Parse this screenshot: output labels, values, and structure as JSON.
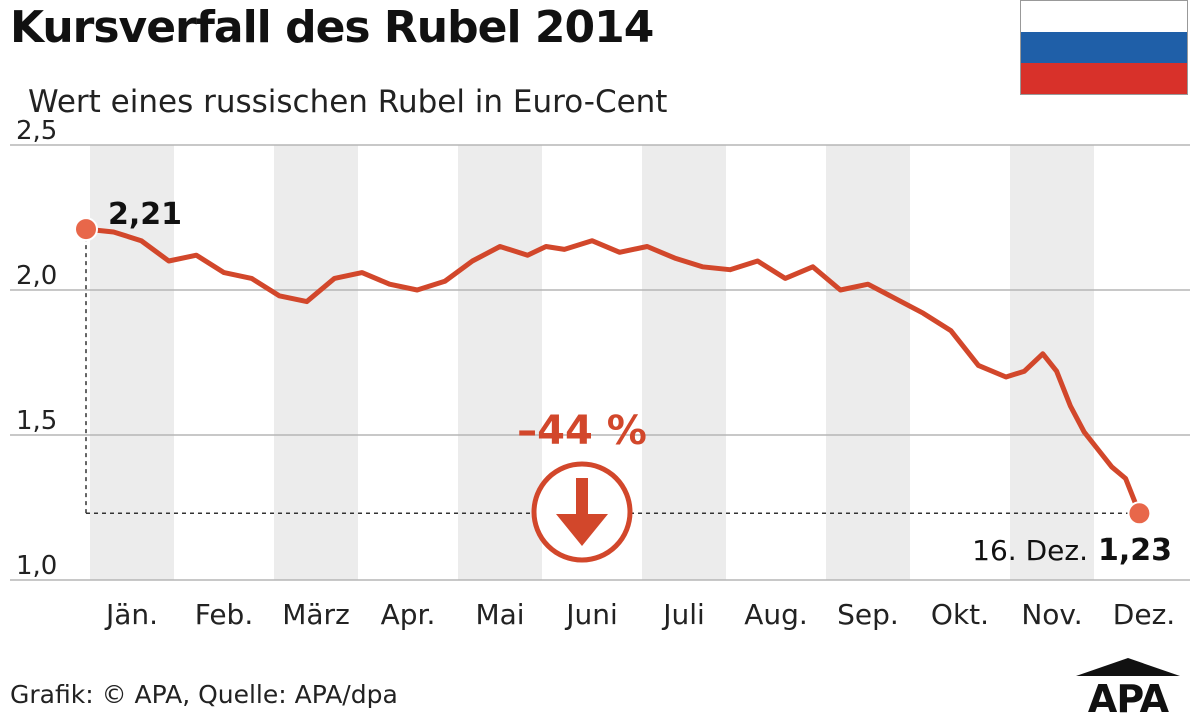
{
  "title": "Kursverfall des Rubel 2014",
  "subtitle": "Wert eines russischen Rubel in Euro-Cent",
  "source": "Grafik: © APA, Quelle: APA/dpa",
  "logo": {
    "text": "APA"
  },
  "flag": {
    "colors": [
      "#ffffff",
      "#1f5fa8",
      "#d8312a"
    ]
  },
  "colors": {
    "line": "#d2472b",
    "band": "#ececec",
    "grid": "#b5b5b5",
    "text": "#111111",
    "logo": "#111111"
  },
  "chart_data": {
    "type": "line",
    "xlabel": "",
    "ylabel": "",
    "ylim": [
      1.0,
      2.5
    ],
    "yticks": [
      1.0,
      1.5,
      2.0,
      2.5
    ],
    "ytick_labels": [
      "1,0",
      "1,5",
      "2,0",
      "2,5"
    ],
    "months": [
      "Jän.",
      "Feb.",
      "März",
      "Apr.",
      "Mai",
      "Juni",
      "Juli",
      "Aug.",
      "Sep.",
      "Okt.",
      "Nov.",
      "Dez."
    ],
    "grid": true,
    "series": [
      {
        "x": [
          0,
          0.3,
          0.6,
          0.9,
          1.2,
          1.5,
          1.8,
          2.1,
          2.4,
          2.7,
          3.0,
          3.3,
          3.6,
          3.9,
          4.2,
          4.5,
          4.8,
          5.0,
          5.2,
          5.5,
          5.8,
          6.1,
          6.4,
          6.7,
          7.0,
          7.3,
          7.6,
          7.9,
          8.2,
          8.5,
          8.8,
          9.1,
          9.4,
          9.7,
          10.0,
          10.2,
          10.4,
          10.55,
          10.7,
          10.85,
          11.0,
          11.15,
          11.3,
          11.45
        ],
        "values": [
          2.21,
          2.2,
          2.17,
          2.1,
          2.12,
          2.06,
          2.04,
          1.98,
          1.96,
          2.04,
          2.06,
          2.02,
          2.0,
          2.03,
          2.1,
          2.15,
          2.12,
          2.15,
          2.14,
          2.17,
          2.13,
          2.15,
          2.11,
          2.08,
          2.07,
          2.1,
          2.04,
          2.08,
          2.0,
          2.02,
          1.97,
          1.92,
          1.86,
          1.74,
          1.7,
          1.72,
          1.78,
          1.72,
          1.6,
          1.51,
          1.45,
          1.39,
          1.35,
          1.23
        ]
      }
    ],
    "annotations": {
      "start_value": "2,21",
      "end_date": "16. Dez.",
      "end_value": "1,23",
      "change": "–44 %"
    }
  }
}
